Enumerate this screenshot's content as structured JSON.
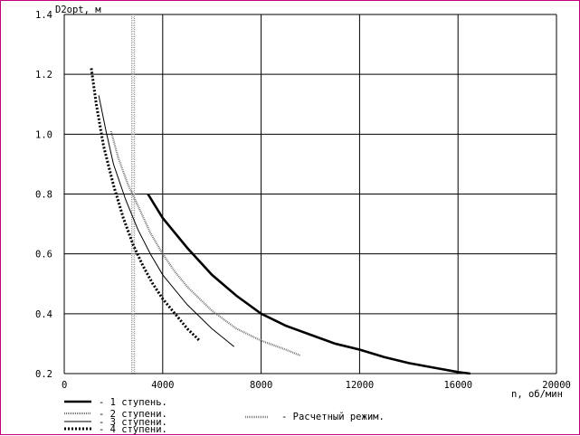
{
  "chart_data": {
    "type": "line",
    "ylabel": "D2opt, м",
    "xlabel": "n, об/мин",
    "xlim": [
      0,
      20000
    ],
    "ylim": [
      0.2,
      1.4
    ],
    "x_ticks": [
      0,
      4000,
      8000,
      12000,
      16000,
      20000
    ],
    "y_ticks": [
      0.2,
      0.4,
      0.6,
      0.8,
      1.0,
      1.2,
      1.4
    ],
    "x_tick_labels": [
      "0",
      "4000",
      "8000",
      "12000",
      "16000",
      "20000"
    ],
    "y_tick_labels": [
      "0.2",
      "0.4",
      "0.6",
      "0.8",
      "1.0",
      "1.2",
      "1.4"
    ],
    "grid": true,
    "series": [
      {
        "name": "- 1 ступень.",
        "style": "thick-solid",
        "x": [
          3400,
          4000,
          5000,
          6000,
          7000,
          8000,
          9000,
          10000,
          11000,
          12000,
          13000,
          14000,
          15000,
          16000,
          16500
        ],
        "y": [
          0.8,
          0.72,
          0.62,
          0.53,
          0.46,
          0.4,
          0.36,
          0.33,
          0.3,
          0.28,
          0.255,
          0.235,
          0.22,
          0.205,
          0.2
        ]
      },
      {
        "name": "- 2 ступени.",
        "style": "dotted-wave",
        "x": [
          1900,
          2200,
          2600,
          3000,
          3500,
          4000,
          4500,
          5000,
          6000,
          7000,
          8000,
          9000,
          9600
        ],
        "y": [
          1.01,
          0.92,
          0.83,
          0.76,
          0.67,
          0.6,
          0.54,
          0.49,
          0.41,
          0.35,
          0.31,
          0.28,
          0.26
        ]
      },
      {
        "name": "- 3 ступени.",
        "style": "thin-solid",
        "x": [
          1400,
          1700,
          2000,
          2500,
          3000,
          3500,
          4000,
          4500,
          5000,
          6000,
          6900
        ],
        "y": [
          1.13,
          1.01,
          0.9,
          0.78,
          0.68,
          0.6,
          0.53,
          0.48,
          0.43,
          0.35,
          0.29
        ]
      },
      {
        "name": "- 4 ступени.",
        "style": "dotted-thick",
        "x": [
          1100,
          1300,
          1600,
          2000,
          2400,
          2800,
          3200,
          3600,
          4000,
          4500,
          5000,
          5500
        ],
        "y": [
          1.22,
          1.1,
          0.96,
          0.83,
          0.72,
          0.63,
          0.56,
          0.5,
          0.45,
          0.4,
          0.35,
          0.31
        ]
      }
    ],
    "reference_line": {
      "label": "- Расчетный режим.",
      "x": 2800,
      "style": "hatched-vertical"
    }
  }
}
